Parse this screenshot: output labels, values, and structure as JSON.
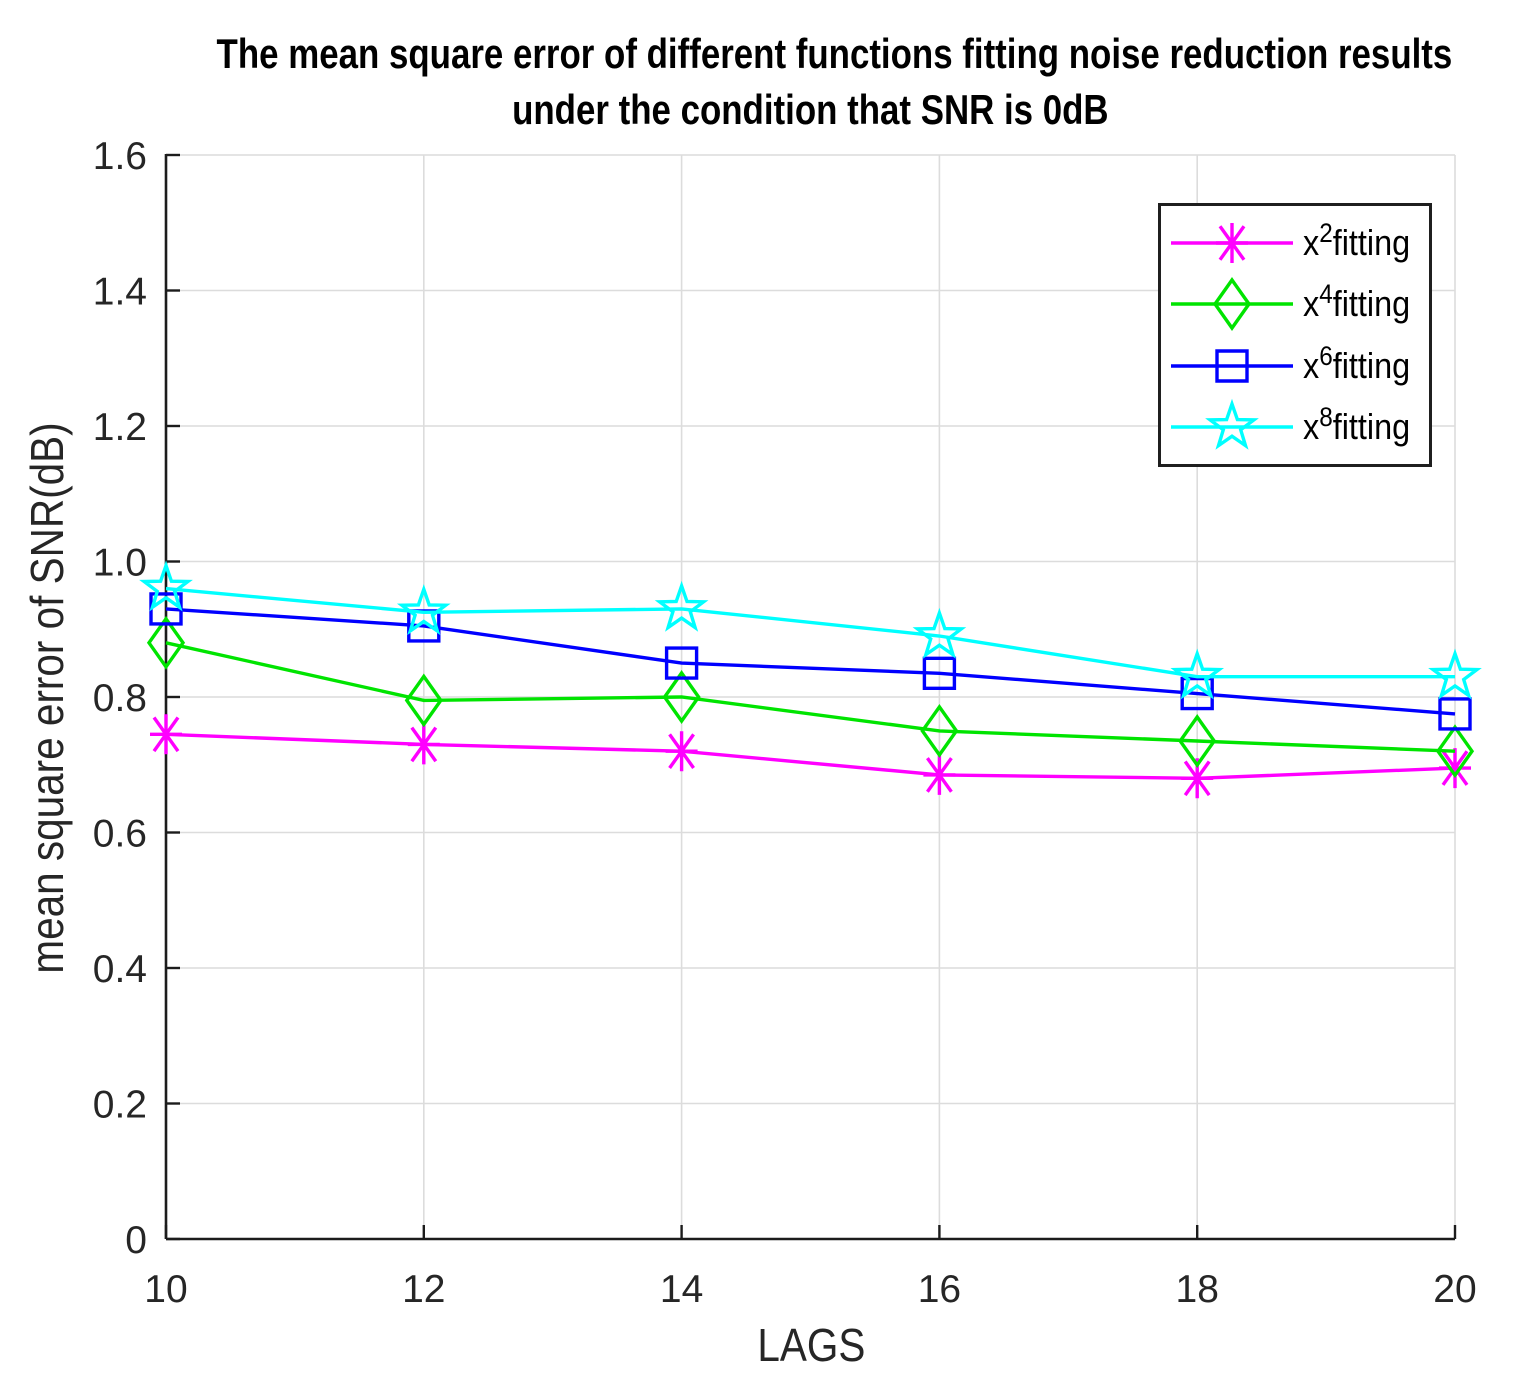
{
  "figure": {
    "title_line1": "The mean square error of different functions fitting noise reduction results",
    "title_line2": "under the condition that SNR is 0dB",
    "xlabel": "LAGS",
    "ylabel": "mean square error of SNR(dB)"
  },
  "chart_data": {
    "type": "line",
    "title": "The mean square error of different functions fitting noise reduction results under the condition that SNR is 0dB",
    "xlabel": "LAGS",
    "ylabel": "mean square error of SNR(dB)",
    "x": [
      10,
      12,
      14,
      16,
      18,
      20
    ],
    "xlim": [
      10,
      20
    ],
    "ylim": [
      0,
      1.6
    ],
    "x_tick_labels": [
      "10",
      "12",
      "14",
      "16",
      "18",
      "20"
    ],
    "y_tick_labels": [
      "0",
      "0.2",
      "0.4",
      "0.6",
      "0.8",
      "1.0",
      "1.2",
      "1.4",
      "1.6"
    ],
    "grid": true,
    "legend_position": "top-right",
    "series": [
      {
        "name": "x^2 fitting",
        "label_base": "x",
        "label_sup": "2",
        "label_rest": "fitting",
        "marker": "asterisk",
        "color": "#ff00ff",
        "values": [
          0.745,
          0.73,
          0.72,
          0.685,
          0.68,
          0.695
        ]
      },
      {
        "name": "x^4 fitting",
        "label_base": "x",
        "label_sup": "4",
        "label_rest": "fitting",
        "marker": "diamond",
        "color": "#00e400",
        "values": [
          0.88,
          0.795,
          0.8,
          0.75,
          0.735,
          0.72
        ]
      },
      {
        "name": "x^6 fitting",
        "label_base": "x",
        "label_sup": "6",
        "label_rest": "fitting",
        "marker": "square",
        "color": "#0000ff",
        "values": [
          0.93,
          0.905,
          0.85,
          0.835,
          0.805,
          0.775
        ]
      },
      {
        "name": "x^8 fitting",
        "label_base": "x",
        "label_sup": "8",
        "label_rest": "fitting",
        "marker": "pentagram",
        "color": "#00ffff",
        "values": [
          0.96,
          0.925,
          0.93,
          0.89,
          0.83,
          0.83
        ]
      }
    ],
    "colors": {
      "grid": "#dcdcdc",
      "axis": "#1c1c1c",
      "tick_text": "#262626",
      "background": "#ffffff"
    }
  }
}
